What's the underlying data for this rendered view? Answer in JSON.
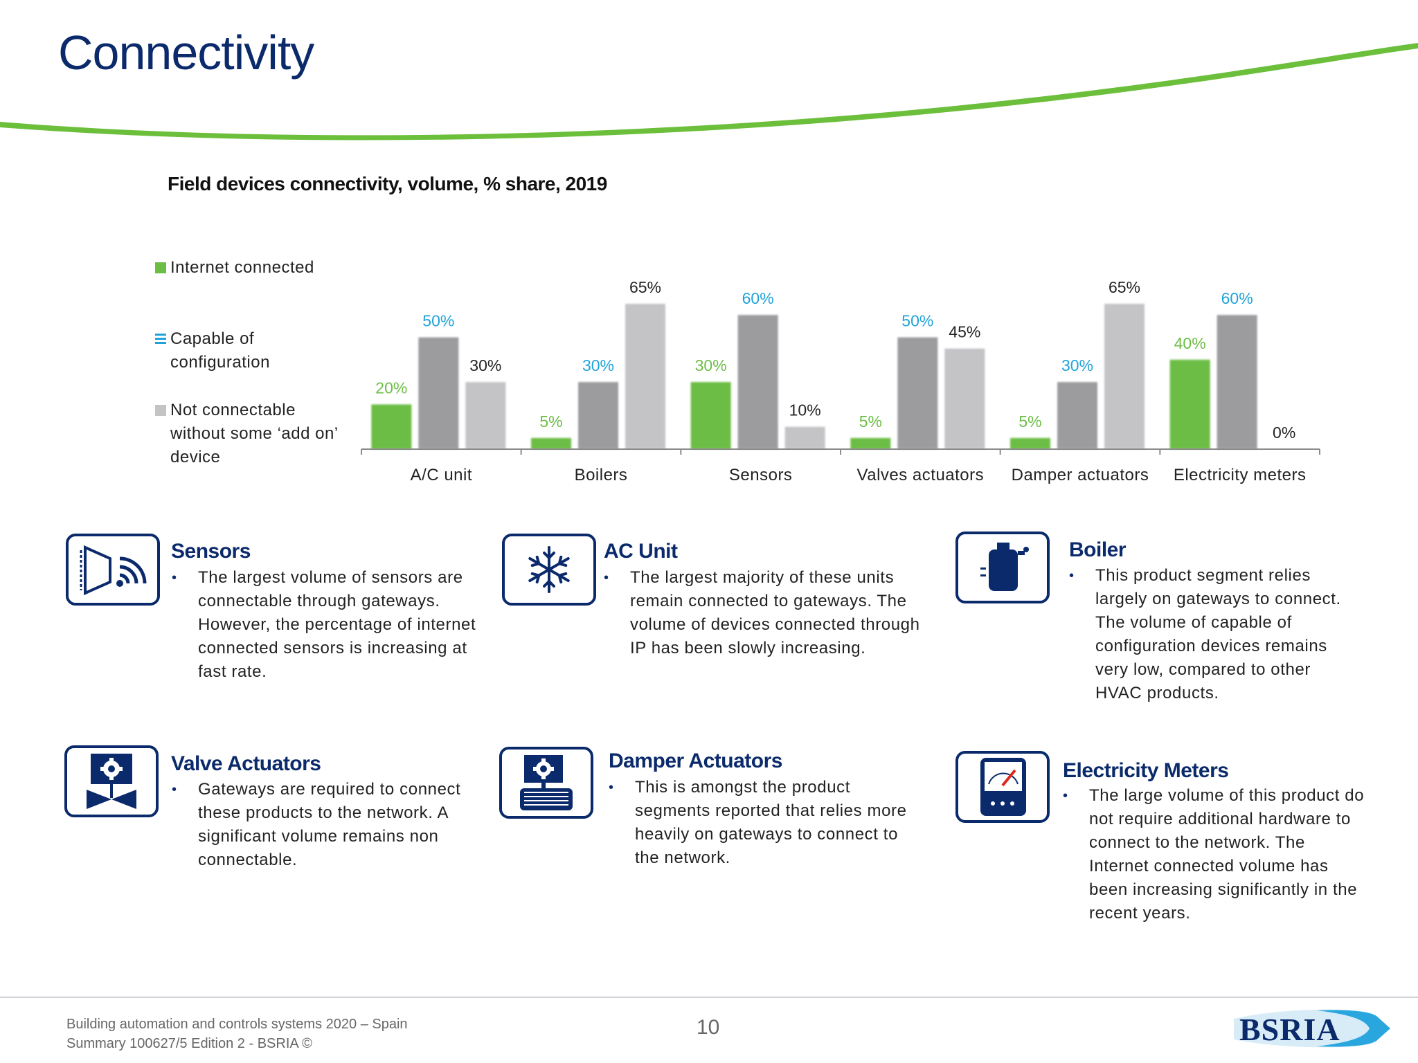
{
  "page": {
    "title": "Connectivity",
    "footer_line1": "Building automation and controls systems 2020 – Spain",
    "footer_line2": "Summary 100627/5 Edition 2 - BSRIA ©",
    "page_number": "10",
    "logo_text": "BSRIA",
    "colors": {
      "navy": "#0b2a6b",
      "green_accent": "#6bbf3b"
    }
  },
  "chart_data": {
    "type": "bar",
    "title": "Field devices connectivity, volume, % share, 2019",
    "categories": [
      "A/C unit",
      "Boilers",
      "Sensors",
      "Valves actuators",
      "Damper actuators",
      "Electricity meters"
    ],
    "series": [
      {
        "name": "Internet connected",
        "values": [
          20,
          5,
          30,
          5,
          5,
          40
        ],
        "labels": [
          "20%",
          "5%",
          "30%",
          "5%",
          "5%",
          "40%"
        ],
        "color": "#6cbd45",
        "label_color": "#6cbd45"
      },
      {
        "name": "Capable of configuration",
        "values": [
          50,
          30,
          60,
          50,
          30,
          60
        ],
        "labels": [
          "50%",
          "30%",
          "60%",
          "50%",
          "30%",
          "60%"
        ],
        "color": "#9c9b9e",
        "label_color": "#1ea3d9"
      },
      {
        "name": "Not connectable without some ‘add on’ device",
        "values": [
          30,
          65,
          10,
          45,
          65,
          0
        ],
        "labels": [
          "30%",
          "65%",
          "10%",
          "45%",
          "65%",
          "0%"
        ],
        "color": "#c4c4c7",
        "label_color": "#222222"
      }
    ],
    "legend": [
      {
        "text": "Internet connected",
        "swatch": "square",
        "color": "#6cbd45"
      },
      {
        "text": "Capable of\nconfiguration",
        "swatch": "lines",
        "color": "#1ea3d9"
      },
      {
        "text": "Not connectable\nwithout some ‘add on’\ndevice",
        "swatch": "square",
        "color": "#c4c4c7"
      }
    ],
    "legend_position": "left",
    "ylim": [
      0,
      70
    ],
    "grid": false
  },
  "cards": [
    {
      "icon": "sensor-icon",
      "title": "Sensors",
      "text": "The largest volume of sensors are connectable through gateways. However, the percentage of internet connected sensors is increasing at fast rate."
    },
    {
      "icon": "snowflake-icon",
      "title": "AC Unit",
      "text": "The largest majority of these units remain connected to gateways. The volume of devices connected through IP has been slowly increasing."
    },
    {
      "icon": "boiler-icon",
      "title": "Boiler",
      "text": "This product segment relies largely on gateways to connect. The volume of capable of configuration devices remains very low, compared to other HVAC products."
    },
    {
      "icon": "valve-actuator-icon",
      "title": "Valve Actuators",
      "text": "Gateways are required to connect these products to the network.  A significant volume remains non connectable."
    },
    {
      "icon": "damper-actuator-icon",
      "title": "Damper Actuators",
      "text": "This is amongst the product segments reported that  relies more heavily on gateways to connect to the network."
    },
    {
      "icon": "electricity-meter-icon",
      "title": "Electricity Meters",
      "text": "The large volume of this product do not require additional hardware to connect to the network. The Internet connected volume has been increasing significantly in the recent years."
    }
  ]
}
